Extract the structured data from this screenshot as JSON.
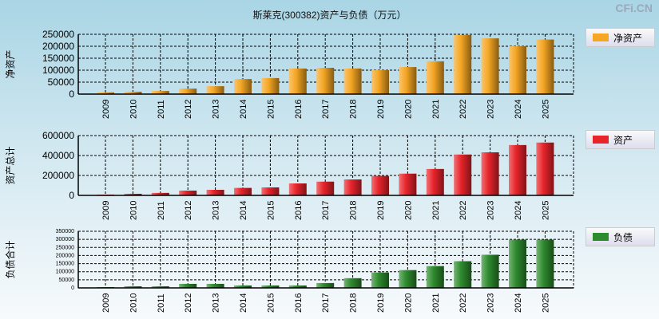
{
  "title": "斯莱克(300382)资产与负债（万元）",
  "watermark": "CFi.CN",
  "chart_data": [
    {
      "type": "bar",
      "ylabel": "净资产",
      "legend": "净资产",
      "color": "#f5a623",
      "ylim": [
        0,
        250000
      ],
      "yticks": [
        0,
        50000,
        100000,
        150000,
        200000,
        250000
      ],
      "categories": [
        "2009",
        "2010",
        "2011",
        "2012",
        "2013",
        "2014",
        "2015",
        "2016",
        "2017",
        "2018",
        "2019",
        "2020",
        "2021",
        "2022",
        "2023",
        "2024",
        "2025"
      ],
      "values": [
        7000,
        10000,
        13000,
        23000,
        33000,
        63000,
        67000,
        107000,
        110000,
        107000,
        100000,
        113000,
        137000,
        247000,
        233000,
        200000,
        228000
      ]
    },
    {
      "type": "bar",
      "ylabel": "资产总计",
      "legend": "资产",
      "color": "#e8242b",
      "ylim": [
        0,
        600000
      ],
      "yticks": [
        0,
        200000,
        400000,
        600000
      ],
      "categories": [
        "2009",
        "2010",
        "2011",
        "2012",
        "2013",
        "2014",
        "2015",
        "2016",
        "2017",
        "2018",
        "2019",
        "2020",
        "2021",
        "2022",
        "2023",
        "2024",
        "2025"
      ],
      "values": [
        8000,
        16000,
        25000,
        48000,
        56000,
        75000,
        80000,
        120000,
        138000,
        160000,
        195000,
        218000,
        265000,
        410000,
        432000,
        505000,
        530000
      ]
    },
    {
      "type": "bar",
      "ylabel": "负债合计",
      "legend": "负债",
      "color": "#2e8b2e",
      "ylim": [
        0,
        350000
      ],
      "yticks": [
        0,
        50000,
        100000,
        150000,
        200000,
        250000,
        300000,
        350000
      ],
      "categories": [
        "2009",
        "2010",
        "2011",
        "2012",
        "2013",
        "2014",
        "2015",
        "2016",
        "2017",
        "2018",
        "2019",
        "2020",
        "2021",
        "2022",
        "2023",
        "2024",
        "2025"
      ],
      "values": [
        5000,
        10000,
        10000,
        25000,
        25000,
        15000,
        15000,
        15000,
        30000,
        60000,
        95000,
        110000,
        135000,
        165000,
        205000,
        298000,
        298000
      ]
    }
  ]
}
